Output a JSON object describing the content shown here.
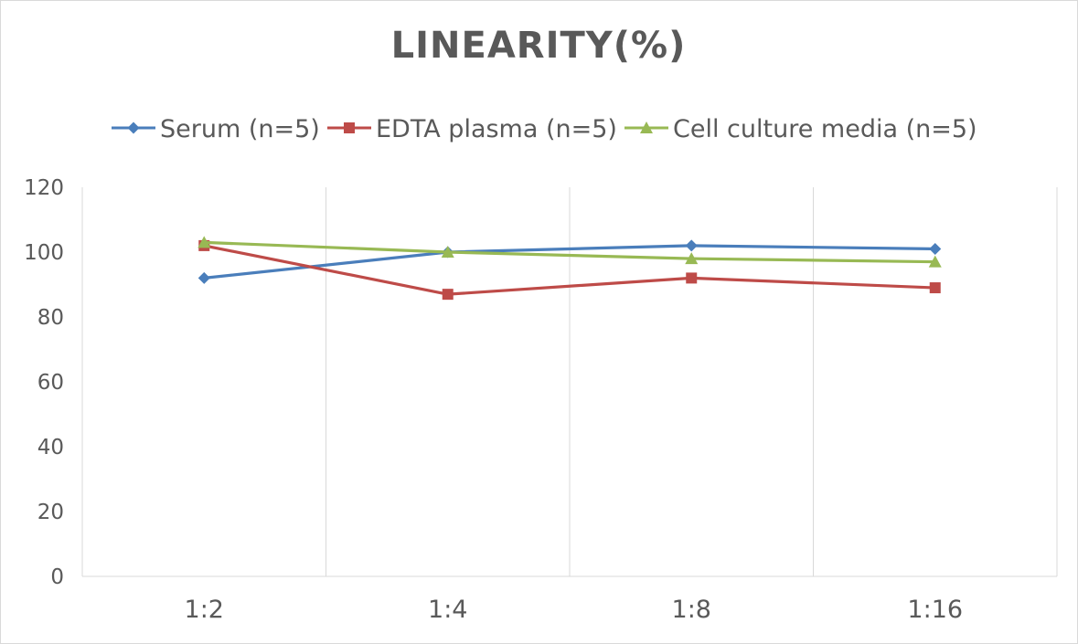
{
  "chart_data": {
    "type": "line",
    "title": "LINEARITY(%)",
    "categories": [
      "1:2",
      "1:4",
      "1:8",
      "1:16"
    ],
    "series": [
      {
        "name": "Serum (n=5)",
        "values": [
          92,
          100,
          102,
          101
        ],
        "color": "#4a7ebb",
        "marker": "diamond"
      },
      {
        "name": "EDTA plasma (n=5)",
        "values": [
          102,
          87,
          92,
          89
        ],
        "color": "#be4b48",
        "marker": "square"
      },
      {
        "name": "Cell culture media (n=5)",
        "values": [
          103,
          100,
          98,
          97
        ],
        "color": "#98b954",
        "marker": "triangle"
      }
    ],
    "ylim": [
      0,
      120
    ],
    "yticks": [
      "0",
      "20",
      "40",
      "60",
      "80",
      "100",
      "120"
    ],
    "grid": "vertical",
    "legend_position": "top"
  }
}
